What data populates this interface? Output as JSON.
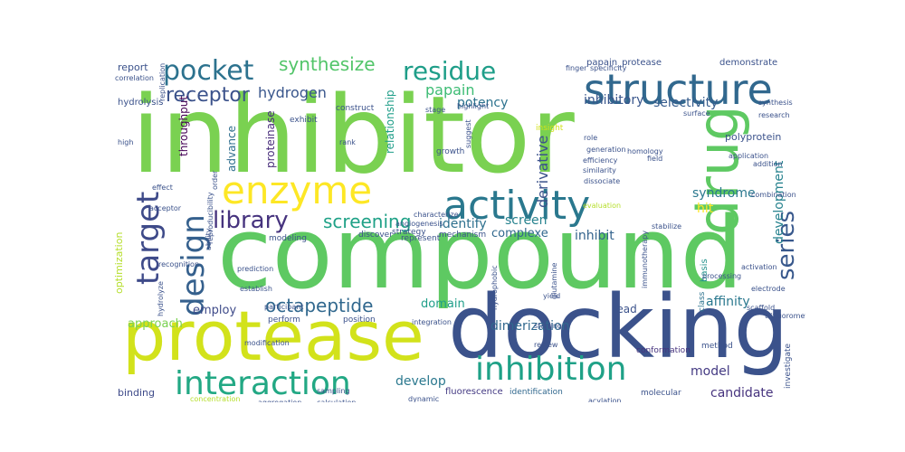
{
  "words": [
    {
      "text": "inhibitor",
      "color": "#7ad151"
    },
    {
      "text": "compound",
      "color": "#5ec962"
    },
    {
      "text": "docking",
      "color": "#3b528b"
    },
    {
      "text": "protease",
      "color": "#d2e21b"
    },
    {
      "text": "drug",
      "color": "#5ec962"
    },
    {
      "text": "structure",
      "color": "#31688e"
    },
    {
      "text": "activity",
      "color": "#2a788e"
    },
    {
      "text": "enzyme",
      "color": "#fde725"
    },
    {
      "text": "inhibition",
      "color": "#1fa187"
    },
    {
      "text": "interaction",
      "color": "#22a884"
    },
    {
      "text": "design",
      "color": "#35608d"
    },
    {
      "text": "target",
      "color": "#3e4a89"
    },
    {
      "text": "pocket",
      "color": "#2c728e"
    },
    {
      "text": "residue",
      "color": "#1f9e89"
    },
    {
      "text": "series",
      "color": "#38588c"
    },
    {
      "text": "library",
      "color": "#46337e"
    },
    {
      "text": "receptor",
      "color": "#3b528b"
    },
    {
      "text": "synthesize",
      "color": "#52c569"
    },
    {
      "text": "octapeptide",
      "color": "#31688e"
    },
    {
      "text": "screening",
      "color": "#1fa187"
    },
    {
      "text": "hydrogen",
      "color": "#39568c"
    },
    {
      "text": "papain",
      "color": "#3dbc74"
    },
    {
      "text": "derivative",
      "color": "#3b528b"
    },
    {
      "text": "development",
      "color": "#26828e"
    },
    {
      "text": "hit",
      "color": "#fde725"
    },
    {
      "text": "affinity",
      "color": "#2a788e"
    },
    {
      "text": "dimerization",
      "color": "#31688e"
    },
    {
      "text": "inhibit",
      "color": "#33638d"
    },
    {
      "text": "screen",
      "color": "#26828e"
    },
    {
      "text": "identify",
      "color": "#2d708e"
    },
    {
      "text": "syndrome",
      "color": "#2a788e"
    },
    {
      "text": "inhibitory",
      "color": "#39568c"
    },
    {
      "text": "selectivity",
      "color": "#365c8d"
    },
    {
      "text": "potency",
      "color": "#2c728e"
    },
    {
      "text": "relationship",
      "color": "#1f9e89"
    },
    {
      "text": "throughput",
      "color": "#440154"
    },
    {
      "text": "proteinase",
      "color": "#472c7a"
    },
    {
      "text": "advance",
      "color": "#2e6e8e"
    },
    {
      "text": "develop",
      "color": "#2a788e"
    },
    {
      "text": "model",
      "color": "#443a83"
    },
    {
      "text": "candidate",
      "color": "#46337e"
    },
    {
      "text": "approach",
      "color": "#7ad151"
    },
    {
      "text": "employ",
      "color": "#3e4a89"
    },
    {
      "text": "domain",
      "color": "#1f9e89"
    },
    {
      "text": "complexe",
      "color": "#31688e"
    },
    {
      "text": "lead",
      "color": "#3b528b"
    },
    {
      "text": "report",
      "color": "#3b528b"
    },
    {
      "text": "polyprotein",
      "color": "#3b528b"
    },
    {
      "text": "basis",
      "color": "#21918c"
    },
    {
      "text": "binding",
      "color": "#3e4a89"
    },
    {
      "text": "optimization",
      "color": "#b5de2b"
    },
    {
      "text": "hydrolysis",
      "color": "#3b528b"
    },
    {
      "text": "demonstrate",
      "color": "#3b528b"
    },
    {
      "text": "papain_protease",
      "color": "#3b528b"
    },
    {
      "text": "fluorescence",
      "color": "#443a83"
    },
    {
      "text": "identification",
      "color": "#31688e"
    },
    {
      "text": "molecular",
      "color": "#3b528b"
    },
    {
      "text": "investigate",
      "color": "#3b528b"
    },
    {
      "text": "conformation",
      "color": "#46337e"
    },
    {
      "text": "class",
      "color": "#2c728e"
    },
    {
      "text": "method",
      "color": "#3b528b"
    },
    {
      "text": "mechanism",
      "color": "#3b528b"
    },
    {
      "text": "strategy",
      "color": "#3b528b"
    },
    {
      "text": "discover",
      "color": "#3b528b"
    },
    {
      "text": "represent",
      "color": "#3b528b"
    },
    {
      "text": "modeling",
      "color": "#3b528b"
    },
    {
      "text": "perform",
      "color": "#3b528b"
    },
    {
      "text": "position",
      "color": "#3b528b"
    },
    {
      "text": "construct",
      "color": "#3b528b"
    },
    {
      "text": "exhibit",
      "color": "#3b528b"
    },
    {
      "text": "growth",
      "color": "#3b528b"
    },
    {
      "text": "insight",
      "color": "#d2e21b"
    },
    {
      "text": "electrode",
      "color": "#3b528b"
    },
    {
      "text": "scaffold",
      "color": "#3b528b"
    },
    {
      "text": "activation",
      "color": "#3b528b"
    },
    {
      "text": "processing",
      "color": "#3b528b"
    },
    {
      "text": "trifluoromethyl",
      "color": "#3b528b"
    },
    {
      "text": "hydrolyze",
      "color": "#3b528b"
    },
    {
      "text": "aggregation",
      "color": "#3b528b"
    },
    {
      "text": "calculation",
      "color": "#3b528b"
    },
    {
      "text": "concentration",
      "color": "#b5de2b"
    },
    {
      "text": "dynamic",
      "color": "#3b528b"
    },
    {
      "text": "acylation",
      "color": "#3b528b"
    },
    {
      "text": "sampling",
      "color": "#3b528b"
    },
    {
      "text": "modification",
      "color": "#3b528b"
    },
    {
      "text": "characterize",
      "color": "#3b528b"
    },
    {
      "text": "angiogenesis",
      "color": "#3b528b"
    },
    {
      "text": "generation",
      "color": "#3b528b"
    },
    {
      "text": "evaluation",
      "color": "#b5de2b"
    },
    {
      "text": "recognition",
      "color": "#3b528b"
    },
    {
      "text": "participant",
      "color": "#3b528b"
    },
    {
      "text": "prediction",
      "color": "#3b528b"
    },
    {
      "text": "establish",
      "color": "#3b528b"
    },
    {
      "text": "specificity",
      "color": "#3b528b"
    },
    {
      "text": "research",
      "color": "#3b528b"
    },
    {
      "text": "synthesis",
      "color": "#3b528b"
    },
    {
      "text": "surface",
      "color": "#3b528b"
    },
    {
      "text": "correlation",
      "color": "#3b528b"
    },
    {
      "text": "reproducibility",
      "color": "#3b528b"
    },
    {
      "text": "combination",
      "color": "#3b528b"
    },
    {
      "text": "application",
      "color": "#3b528b"
    },
    {
      "text": "integration",
      "color": "#3b528b"
    },
    {
      "text": "immunotherapy",
      "color": "#3b528b"
    },
    {
      "text": "efficiency",
      "color": "#3b528b"
    },
    {
      "text": "similarity",
      "color": "#3b528b"
    },
    {
      "text": "homology",
      "color": "#3b528b"
    },
    {
      "text": "field",
      "color": "#3b528b"
    },
    {
      "text": "role",
      "color": "#3b528b"
    },
    {
      "text": "finger",
      "color": "#3b528b"
    },
    {
      "text": "highlight",
      "color": "#3b528b"
    },
    {
      "text": "suggest",
      "color": "#3b528b"
    },
    {
      "text": "stage",
      "color": "#3b528b"
    },
    {
      "text": "rank",
      "color": "#3b528b"
    },
    {
      "text": "high",
      "color": "#3b528b"
    },
    {
      "text": "effect",
      "color": "#3b528b"
    },
    {
      "text": "yield",
      "color": "#3b528b"
    },
    {
      "text": "starting",
      "color": "#3b528b"
    },
    {
      "text": "review",
      "color": "#3b528b"
    },
    {
      "text": "glutamine",
      "color": "#3b528b"
    },
    {
      "text": "dissociate",
      "color": "#3b528b"
    },
    {
      "text": "hydrophobic",
      "color": "#3b528b"
    },
    {
      "text": "stabilize",
      "color": "#3b528b"
    },
    {
      "text": "replication",
      "color": "#3b528b"
    },
    {
      "text": "acceptor",
      "color": "#3b528b"
    },
    {
      "text": "addition",
      "color": "#3b528b"
    },
    {
      "text": "order",
      "color": "#3b528b"
    },
    {
      "text": "ability",
      "color": "#3b528b"
    }
  ]
}
